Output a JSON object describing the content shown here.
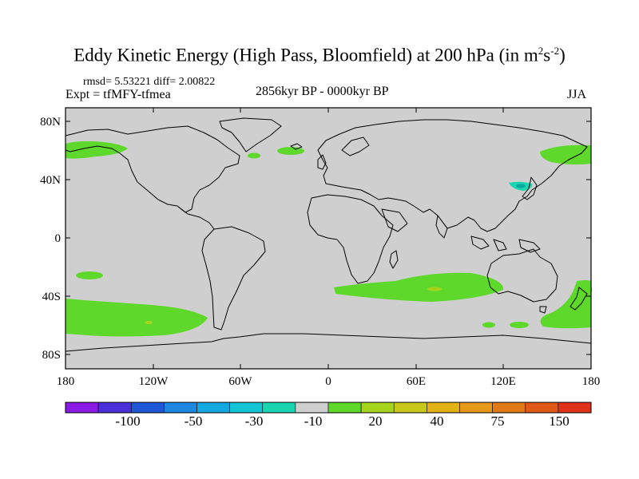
{
  "title": {
    "main": "Eddy Kinetic Energy (High Pass, Bloomfield) at 200 hPa (in m",
    "sup1": "2",
    "mid": "s",
    "sup2": "-2",
    "end": ")"
  },
  "stats": {
    "rmsd_line": "rmsd= 5.53221 diff= 2.00822"
  },
  "experiment": "Expt = tfMFY-tfmea",
  "period": "2856kyr BP - 0000kyr BP",
  "season": "JJA",
  "axes": {
    "lat_ticks": [
      "80N",
      "40N",
      "0",
      "40S",
      "80S"
    ],
    "lon_ticks": [
      "180",
      "120W",
      "60W",
      "0",
      "60E",
      "120E",
      "180"
    ]
  },
  "colorbar": {
    "colors": [
      "#8a1ae6",
      "#4b30d9",
      "#1f58d6",
      "#1c88e0",
      "#14a8e0",
      "#12c4d4",
      "#1ad6b0",
      "#cfcfcf",
      "#5ed82a",
      "#a6d41c",
      "#c8c81a",
      "#e0b214",
      "#e6981a",
      "#e07a18",
      "#e05818",
      "#e0321a"
    ],
    "labels": [
      "-100",
      "-50",
      "-30",
      "-10",
      "20",
      "40",
      "75",
      "150"
    ]
  },
  "map_colors": {
    "background": "#cfcfcf",
    "positive": "#5ed82a",
    "positive_high": "#a6d41c",
    "negative": "#1ad6b0"
  }
}
